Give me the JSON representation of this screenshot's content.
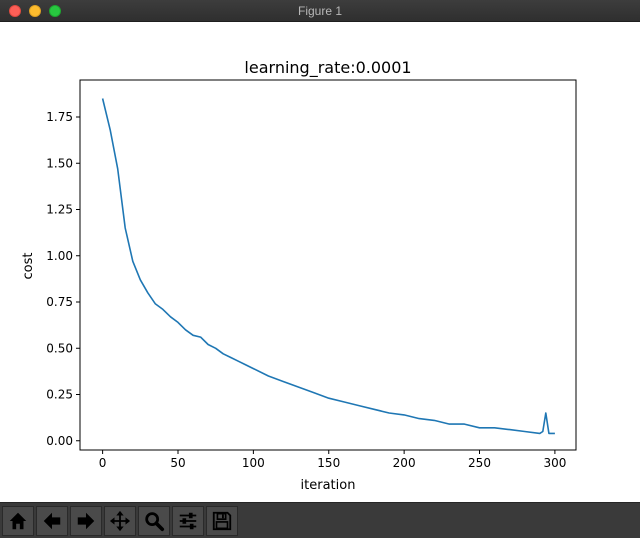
{
  "window": {
    "title": "Figure 1"
  },
  "toolbar": {
    "buttons": [
      {
        "name": "home-button",
        "icon": "home-icon"
      },
      {
        "name": "back-button",
        "icon": "arrow-left-icon"
      },
      {
        "name": "forward-button",
        "icon": "arrow-right-icon"
      },
      {
        "name": "pan-button",
        "icon": "move-icon"
      },
      {
        "name": "zoom-button",
        "icon": "magnifier-icon"
      },
      {
        "name": "configure-subplots-button",
        "icon": "sliders-icon"
      },
      {
        "name": "save-button",
        "icon": "floppy-disk-icon"
      }
    ]
  },
  "colors": {
    "line": "#1f77b4",
    "toolbar": "#3a3a3a",
    "titlebar": "#353535"
  },
  "chart_data": {
    "type": "line",
    "title": "learning_rate:0.0001",
    "xlabel": "iteration",
    "ylabel": "cost",
    "xlim": [
      -15,
      314
    ],
    "ylim": [
      -0.05,
      1.95
    ],
    "xticks": [
      0,
      50,
      100,
      150,
      200,
      250,
      300
    ],
    "yticks": [
      0.0,
      0.25,
      0.5,
      0.75,
      1.0,
      1.25,
      1.5,
      1.75
    ],
    "xtick_labels": [
      "0",
      "50",
      "100",
      "150",
      "200",
      "250",
      "300"
    ],
    "ytick_labels": [
      "0.00",
      "0.25",
      "0.50",
      "0.75",
      "1.00",
      "1.25",
      "1.50",
      "1.75"
    ],
    "grid": false,
    "series": [
      {
        "name": "",
        "x": [
          0,
          5,
          10,
          15,
          20,
          25,
          30,
          35,
          40,
          45,
          50,
          55,
          60,
          65,
          70,
          75,
          80,
          85,
          90,
          95,
          100,
          110,
          120,
          130,
          140,
          150,
          160,
          170,
          180,
          190,
          200,
          210,
          220,
          230,
          240,
          250,
          260,
          270,
          280,
          290,
          292,
          294,
          296,
          300
        ],
        "y": [
          1.85,
          1.68,
          1.47,
          1.15,
          0.97,
          0.87,
          0.8,
          0.74,
          0.71,
          0.67,
          0.64,
          0.6,
          0.57,
          0.56,
          0.52,
          0.5,
          0.47,
          0.45,
          0.43,
          0.41,
          0.39,
          0.35,
          0.32,
          0.29,
          0.26,
          0.23,
          0.21,
          0.19,
          0.17,
          0.15,
          0.14,
          0.12,
          0.11,
          0.09,
          0.09,
          0.07,
          0.07,
          0.06,
          0.05,
          0.04,
          0.05,
          0.15,
          0.04,
          0.04
        ]
      }
    ]
  }
}
